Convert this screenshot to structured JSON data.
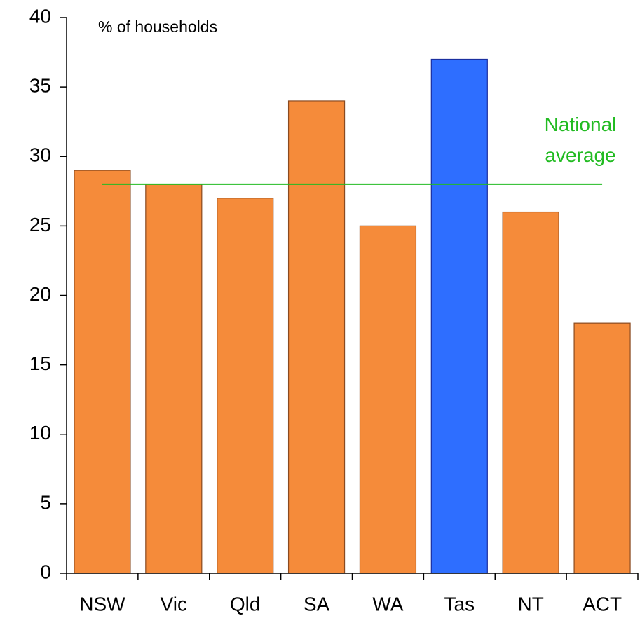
{
  "chart_data": {
    "type": "bar",
    "y_label": "% of households",
    "categories": [
      "NSW",
      "Vic",
      "Qld",
      "SA",
      "WA",
      "Tas",
      "NT",
      "ACT"
    ],
    "values": [
      29,
      28,
      27,
      34,
      25,
      37,
      26,
      18
    ],
    "colors": [
      "#f58b3a",
      "#f58b3a",
      "#f58b3a",
      "#f58b3a",
      "#f58b3a",
      "#2e6eff",
      "#f58b3a",
      "#f58b3a"
    ],
    "ylim": [
      0,
      40
    ],
    "yticks": [
      0,
      5,
      10,
      15,
      20,
      25,
      30,
      35,
      40
    ],
    "grid": false,
    "reference_line": {
      "label": "National average",
      "value": 28,
      "color": "#22bb22"
    }
  }
}
